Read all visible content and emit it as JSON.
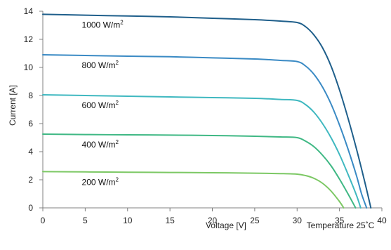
{
  "chart_data": {
    "type": "line",
    "title": "",
    "xlabel": "Voltage [V]",
    "ylabel": "Current [A]",
    "annotation": "Temperature 25˚C",
    "xlim": [
      0,
      40
    ],
    "ylim": [
      0,
      14
    ],
    "xticks": [
      0,
      5,
      10,
      15,
      20,
      25,
      30,
      35,
      40
    ],
    "yticks": [
      0,
      2,
      4,
      6,
      8,
      10,
      12,
      14
    ],
    "grid": false,
    "legend": "inline labels",
    "unit_base": "W/m",
    "unit_sup": "2",
    "series": [
      {
        "irradiance": "1000",
        "color": "#1f5f8b",
        "x": [
          0,
          5,
          10,
          15,
          20,
          25,
          28,
          30,
          31,
          32,
          33,
          34,
          35,
          36,
          37,
          38,
          38.7
        ],
        "y": [
          13.78,
          13.72,
          13.66,
          13.6,
          13.5,
          13.4,
          13.3,
          13.2,
          12.9,
          12.3,
          11.4,
          10.1,
          8.4,
          6.4,
          4.2,
          1.8,
          0
        ]
      },
      {
        "irradiance": "800",
        "color": "#3a8ac4",
        "x": [
          0,
          5,
          10,
          15,
          20,
          25,
          28,
          30,
          31,
          32,
          33,
          34,
          35,
          36,
          37,
          37.6,
          38.2
        ],
        "y": [
          10.9,
          10.85,
          10.8,
          10.76,
          10.68,
          10.6,
          10.5,
          10.42,
          10.1,
          9.5,
          8.6,
          7.4,
          5.9,
          4.2,
          2.3,
          1.0,
          0
        ]
      },
      {
        "irradiance": "600",
        "color": "#3fb8c0",
        "x": [
          0,
          5,
          10,
          15,
          20,
          25,
          28,
          30,
          31,
          32,
          33,
          34,
          35,
          36,
          37,
          37.5
        ],
        "y": [
          8.05,
          8.0,
          7.95,
          7.9,
          7.85,
          7.8,
          7.72,
          7.65,
          7.35,
          6.8,
          6.0,
          5.0,
          3.8,
          2.4,
          0.9,
          0
        ]
      },
      {
        "irradiance": "400",
        "color": "#3fb884",
        "x": [
          0,
          5,
          10,
          15,
          20,
          25,
          28,
          30,
          31,
          32,
          33,
          34,
          35,
          36,
          36.9
        ],
        "y": [
          5.25,
          5.22,
          5.2,
          5.18,
          5.15,
          5.1,
          5.05,
          5.0,
          4.75,
          4.35,
          3.75,
          3.0,
          2.05,
          1.0,
          0
        ]
      },
      {
        "irradiance": "200",
        "color": "#7cc864",
        "x": [
          0,
          5,
          10,
          15,
          20,
          25,
          28,
          30,
          31,
          32,
          33,
          34,
          35,
          35.5
        ],
        "y": [
          2.58,
          2.56,
          2.54,
          2.52,
          2.5,
          2.47,
          2.44,
          2.4,
          2.3,
          2.1,
          1.75,
          1.2,
          0.45,
          0
        ]
      }
    ]
  }
}
